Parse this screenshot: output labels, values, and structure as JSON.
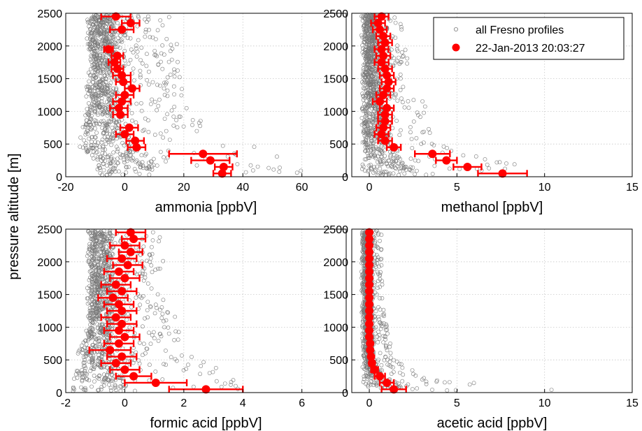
{
  "figure": {
    "ylabel": "pressure altitude [m]",
    "legend": {
      "background_label": "all Fresno profiles",
      "profile_label": "22-Jan-2013 20:03:27",
      "location": "top-right of upper-right panel"
    }
  },
  "colors": {
    "profile": "#ff0000",
    "background": "#7a7a7a",
    "grid": "#c8c8c8"
  },
  "chart_data": [
    {
      "type": "scatter",
      "xlabel": "ammonia [ppbV]",
      "ylabel": "pressure altitude [m]",
      "xlim": [
        -20,
        75
      ],
      "ylim": [
        0,
        2500
      ],
      "xticks": [
        -20,
        0,
        20,
        40,
        60
      ],
      "yticks": [
        0,
        500,
        1000,
        1500,
        2000,
        2500
      ],
      "grid": true,
      "background_series": {
        "name": "all Fresno profiles",
        "spread": [
          [
            0,
            -12,
            58
          ],
          [
            100,
            -10,
            60
          ],
          [
            250,
            -10,
            55
          ],
          [
            400,
            -15,
            48
          ],
          [
            700,
            -15,
            30
          ],
          [
            1000,
            -13,
            22
          ],
          [
            1500,
            -12,
            20
          ],
          [
            2000,
            -12,
            18
          ],
          [
            2500,
            -12,
            16
          ]
        ]
      },
      "series": [
        {
          "name": "22-Jan-2013 20:03:27",
          "points": [
            {
              "x": -3,
              "y": 2450,
              "err": 5
            },
            {
              "x": 2,
              "y": 2350,
              "err": 3
            },
            {
              "x": -1,
              "y": 2250,
              "err": 4
            },
            {
              "x": -5.5,
              "y": 1950,
              "err": 1.5
            },
            {
              "x": -2.5,
              "y": 1850,
              "err": 2
            },
            {
              "x": -3.5,
              "y": 1750,
              "err": 2
            },
            {
              "x": -2.5,
              "y": 1650,
              "err": 2
            },
            {
              "x": -1,
              "y": 1550,
              "err": 3
            },
            {
              "x": -0.5,
              "y": 1450,
              "err": 2.5
            },
            {
              "x": 2.5,
              "y": 1350,
              "err": 2.5
            },
            {
              "x": 0,
              "y": 1250,
              "err": 3
            },
            {
              "x": -1,
              "y": 1150,
              "err": 3
            },
            {
              "x": -2,
              "y": 1050,
              "err": 3
            },
            {
              "x": -1.5,
              "y": 950,
              "err": 2.5
            },
            {
              "x": 1.5,
              "y": 750,
              "err": 3
            },
            {
              "x": 0,
              "y": 650,
              "err": 3
            },
            {
              "x": 3.5,
              "y": 550,
              "err": 3
            },
            {
              "x": 4,
              "y": 450,
              "err": 3
            },
            {
              "x": 26.5,
              "y": 350,
              "err": 11.5
            },
            {
              "x": 29,
              "y": 250,
              "err": 6.5
            },
            {
              "x": 33.5,
              "y": 150,
              "err": 3
            },
            {
              "x": 33,
              "y": 50,
              "err": 3
            }
          ]
        }
      ]
    },
    {
      "type": "scatter",
      "xlabel": "methanol [ppbV]",
      "ylabel": "pressure altitude [m]",
      "xlim": [
        -1,
        15
      ],
      "ylim": [
        0,
        2500
      ],
      "xticks": [
        0,
        5,
        10,
        15
      ],
      "yticks": [
        0,
        500,
        1000,
        1500,
        2000,
        2500
      ],
      "grid": true,
      "background_series": {
        "name": "all Fresno profiles",
        "spread": [
          [
            0,
            -0.3,
            12.5
          ],
          [
            150,
            -0.3,
            9
          ],
          [
            400,
            -0.3,
            5
          ],
          [
            700,
            -0.3,
            3.5
          ],
          [
            1000,
            -0.3,
            3.5
          ],
          [
            1500,
            -0.3,
            2.5
          ],
          [
            2000,
            -0.3,
            2
          ],
          [
            2500,
            -0.3,
            1.8
          ]
        ]
      },
      "series": [
        {
          "name": "22-Jan-2013 20:03:27",
          "points": [
            {
              "x": 0.7,
              "y": 2450,
              "err": 0.4
            },
            {
              "x": 0.5,
              "y": 2350,
              "err": 0.4
            },
            {
              "x": 0.6,
              "y": 2250,
              "err": 0.4
            },
            {
              "x": 0.8,
              "y": 2150,
              "err": 0.4
            },
            {
              "x": 0.9,
              "y": 2050,
              "err": 0.4
            },
            {
              "x": 0.7,
              "y": 1950,
              "err": 0.4
            },
            {
              "x": 0.8,
              "y": 1850,
              "err": 0.4
            },
            {
              "x": 0.7,
              "y": 1750,
              "err": 0.4
            },
            {
              "x": 0.9,
              "y": 1650,
              "err": 0.4
            },
            {
              "x": 1.0,
              "y": 1550,
              "err": 0.4
            },
            {
              "x": 1.1,
              "y": 1450,
              "err": 0.4
            },
            {
              "x": 1.0,
              "y": 1350,
              "err": 0.4
            },
            {
              "x": 0.8,
              "y": 1250,
              "err": 0.4
            },
            {
              "x": 0.6,
              "y": 1150,
              "err": 0.4
            },
            {
              "x": 1.0,
              "y": 1050,
              "err": 0.4
            },
            {
              "x": 0.9,
              "y": 950,
              "err": 0.4
            },
            {
              "x": 0.9,
              "y": 850,
              "err": 0.4
            },
            {
              "x": 0.8,
              "y": 750,
              "err": 0.4
            },
            {
              "x": 0.7,
              "y": 650,
              "err": 0.4
            },
            {
              "x": 0.9,
              "y": 550,
              "err": 0.4
            },
            {
              "x": 1.4,
              "y": 450,
              "err": 0.4
            },
            {
              "x": 3.6,
              "y": 350,
              "err": 1.0
            },
            {
              "x": 4.4,
              "y": 250,
              "err": 0.6
            },
            {
              "x": 5.6,
              "y": 150,
              "err": 0.8
            },
            {
              "x": 7.6,
              "y": 50,
              "err": 1.4
            }
          ]
        }
      ]
    },
    {
      "type": "scatter",
      "xlabel": "formic acid [ppbV]",
      "ylabel": "pressure altitude [m]",
      "xlim": [
        -2,
        7.5
      ],
      "ylim": [
        0,
        2500
      ],
      "xticks": [
        -2,
        0,
        2,
        4,
        6
      ],
      "yticks": [
        0,
        500,
        1000,
        1500,
        2000,
        2500
      ],
      "grid": true,
      "background_series": {
        "name": "all Fresno profiles",
        "spread": [
          [
            0,
            -1.8,
            5.5
          ],
          [
            150,
            -1.8,
            4.5
          ],
          [
            400,
            -1.5,
            3
          ],
          [
            700,
            -1.5,
            2
          ],
          [
            1000,
            -1.2,
            1.8
          ],
          [
            1500,
            -1.2,
            1.5
          ],
          [
            2000,
            -1.2,
            1.5
          ],
          [
            2500,
            -1.2,
            1.3
          ]
        ]
      },
      "series": [
        {
          "name": "22-Jan-2013 20:03:27",
          "points": [
            {
              "x": 0.2,
              "y": 2450,
              "err": 0.5
            },
            {
              "x": 0.3,
              "y": 2350,
              "err": 0.4
            },
            {
              "x": 0.0,
              "y": 2250,
              "err": 0.5
            },
            {
              "x": 0.2,
              "y": 2150,
              "err": 0.4
            },
            {
              "x": -0.1,
              "y": 2050,
              "err": 0.5
            },
            {
              "x": 0.1,
              "y": 1950,
              "err": 0.5
            },
            {
              "x": -0.2,
              "y": 1850,
              "err": 0.5
            },
            {
              "x": 0.0,
              "y": 1750,
              "err": 0.5
            },
            {
              "x": -0.3,
              "y": 1650,
              "err": 0.5
            },
            {
              "x": -0.1,
              "y": 1550,
              "err": 0.5
            },
            {
              "x": -0.4,
              "y": 1450,
              "err": 0.5
            },
            {
              "x": -0.2,
              "y": 1350,
              "err": 0.5
            },
            {
              "x": -0.1,
              "y": 1250,
              "err": 0.5
            },
            {
              "x": -0.3,
              "y": 1150,
              "err": 0.5
            },
            {
              "x": -0.1,
              "y": 1050,
              "err": 0.5
            },
            {
              "x": -0.2,
              "y": 950,
              "err": 0.5
            },
            {
              "x": 0.0,
              "y": 850,
              "err": 0.5
            },
            {
              "x": -0.2,
              "y": 750,
              "err": 0.5
            },
            {
              "x": -0.5,
              "y": 650,
              "err": 0.7
            },
            {
              "x": -0.1,
              "y": 550,
              "err": 0.5
            },
            {
              "x": -0.3,
              "y": 450,
              "err": 0.5
            },
            {
              "x": 0.0,
              "y": 350,
              "err": 0.5
            },
            {
              "x": 0.3,
              "y": 250,
              "err": 0.6
            },
            {
              "x": 1.05,
              "y": 150,
              "err": 1.05
            },
            {
              "x": 2.75,
              "y": 50,
              "err": 1.25
            }
          ]
        }
      ]
    },
    {
      "type": "scatter",
      "xlabel": "acetic acid [ppbV]",
      "ylabel": "pressure altitude [m]",
      "xlim": [
        -1,
        15
      ],
      "ylim": [
        0,
        2500
      ],
      "xticks": [
        0,
        5,
        10,
        15
      ],
      "yticks": [
        0,
        500,
        1000,
        1500,
        2000,
        2500
      ],
      "grid": true,
      "background_series": {
        "name": "all Fresno profiles",
        "spread": [
          [
            0,
            -0.3,
            14
          ],
          [
            100,
            -0.3,
            8
          ],
          [
            250,
            -0.3,
            3
          ],
          [
            500,
            -0.3,
            1.5
          ],
          [
            1000,
            -0.3,
            1
          ],
          [
            1500,
            -0.3,
            0.8
          ],
          [
            2000,
            -0.3,
            0.7
          ],
          [
            2500,
            -0.3,
            0.7
          ]
        ]
      },
      "series": [
        {
          "name": "22-Jan-2013 20:03:27",
          "points": [
            {
              "x": 0.0,
              "y": 2450,
              "err": 0.1
            },
            {
              "x": 0.0,
              "y": 2350,
              "err": 0.1
            },
            {
              "x": 0.0,
              "y": 2250,
              "err": 0.1
            },
            {
              "x": 0.0,
              "y": 2150,
              "err": 0.1
            },
            {
              "x": 0.0,
              "y": 2050,
              "err": 0.1
            },
            {
              "x": 0.0,
              "y": 1950,
              "err": 0.1
            },
            {
              "x": 0.0,
              "y": 1850,
              "err": 0.1
            },
            {
              "x": 0.0,
              "y": 1750,
              "err": 0.1
            },
            {
              "x": 0.0,
              "y": 1650,
              "err": 0.1
            },
            {
              "x": 0.0,
              "y": 1550,
              "err": 0.1
            },
            {
              "x": 0.0,
              "y": 1450,
              "err": 0.1
            },
            {
              "x": 0.0,
              "y": 1350,
              "err": 0.1
            },
            {
              "x": 0.0,
              "y": 1250,
              "err": 0.1
            },
            {
              "x": 0.0,
              "y": 1150,
              "err": 0.1
            },
            {
              "x": 0.0,
              "y": 1050,
              "err": 0.1
            },
            {
              "x": 0.0,
              "y": 950,
              "err": 0.1
            },
            {
              "x": 0.0,
              "y": 850,
              "err": 0.1
            },
            {
              "x": 0.05,
              "y": 750,
              "err": 0.1
            },
            {
              "x": 0.05,
              "y": 650,
              "err": 0.1
            },
            {
              "x": 0.1,
              "y": 550,
              "err": 0.1
            },
            {
              "x": 0.15,
              "y": 450,
              "err": 0.15
            },
            {
              "x": 0.3,
              "y": 350,
              "err": 0.2
            },
            {
              "x": 0.6,
              "y": 250,
              "err": 0.3
            },
            {
              "x": 1.0,
              "y": 150,
              "err": 0.4
            },
            {
              "x": 1.4,
              "y": 50,
              "err": 0.7
            }
          ]
        }
      ]
    }
  ]
}
